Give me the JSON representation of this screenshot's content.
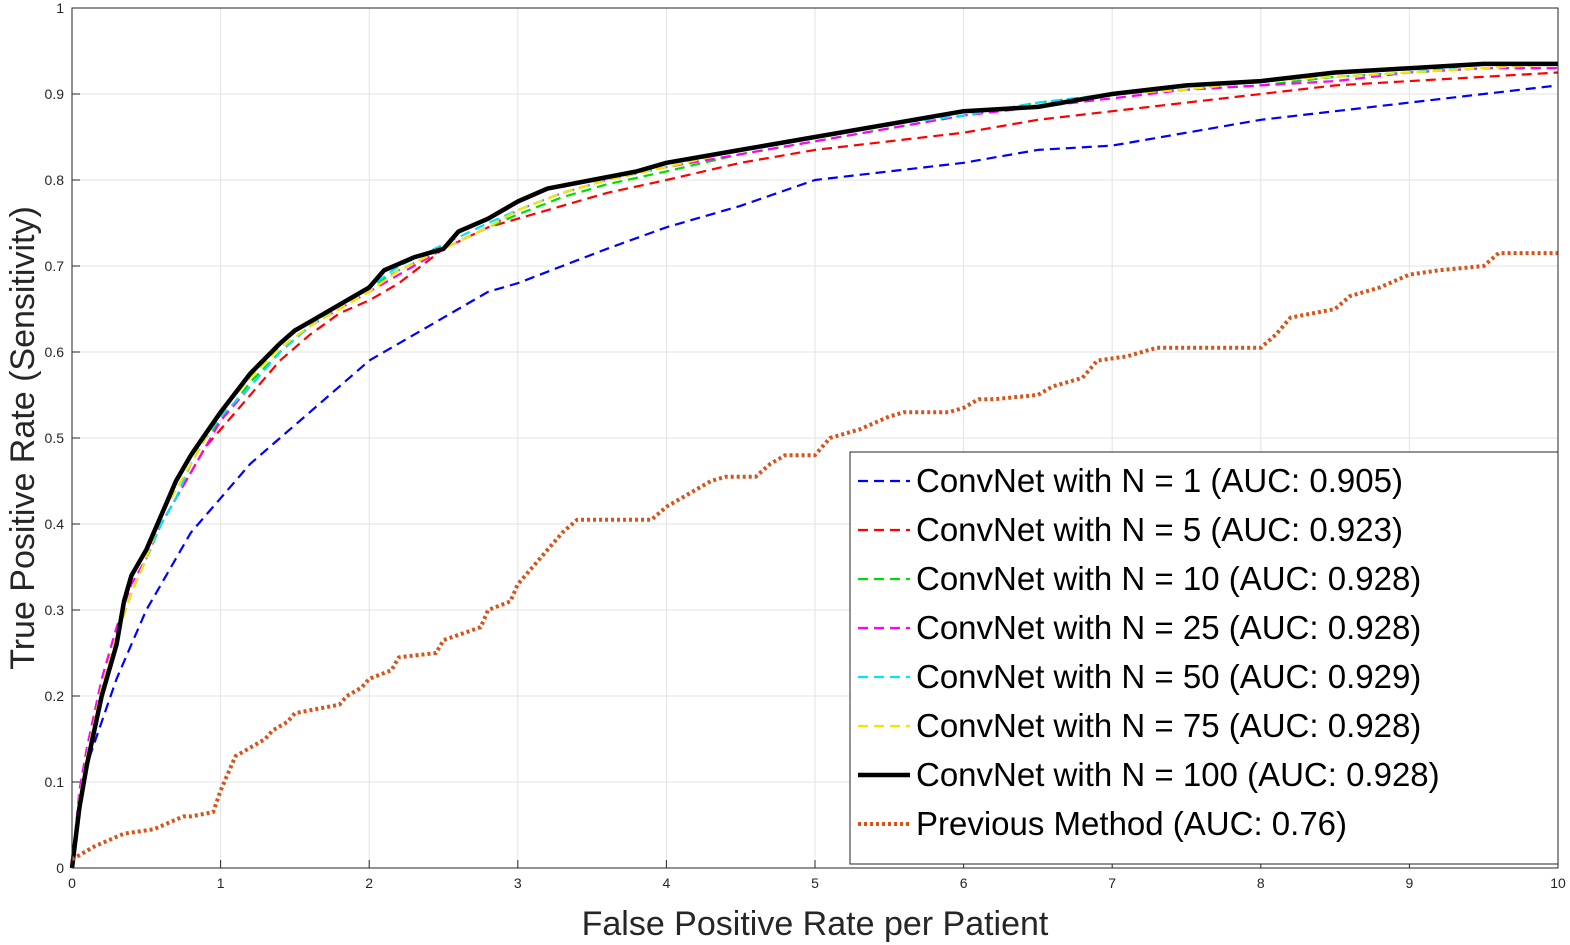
{
  "chart_data": {
    "type": "line",
    "xlabel": "False Positive Rate per Patient",
    "ylabel": "True Positive Rate (Sensitivity)",
    "xlim": [
      0,
      10
    ],
    "ylim": [
      0,
      1
    ],
    "xticks": [
      "0",
      "1",
      "2",
      "3",
      "4",
      "5",
      "6",
      "7",
      "8",
      "9",
      "10"
    ],
    "yticks": [
      "0",
      "0.1",
      "0.2",
      "0.3",
      "0.4",
      "0.5",
      "0.6",
      "0.7",
      "0.8",
      "0.9",
      "1"
    ],
    "grid": true,
    "legend_position": "bottom-right",
    "series": [
      {
        "name": "ConvNet with N = 1 (AUC: 0.905)",
        "color": "#0000ff",
        "style": "dashed",
        "x": [
          0,
          0.05,
          0.1,
          0.2,
          0.3,
          0.4,
          0.5,
          0.6,
          0.7,
          0.8,
          0.9,
          1.0,
          1.2,
          1.4,
          1.6,
          1.8,
          2.0,
          2.2,
          2.5,
          2.8,
          3.0,
          3.3,
          3.6,
          4.0,
          4.5,
          5.0,
          5.5,
          6.0,
          6.5,
          7.0,
          7.5,
          8.0,
          8.5,
          9.0,
          9.5,
          10.0
        ],
        "y": [
          0,
          0.08,
          0.12,
          0.17,
          0.22,
          0.26,
          0.3,
          0.33,
          0.36,
          0.39,
          0.41,
          0.43,
          0.47,
          0.5,
          0.53,
          0.56,
          0.59,
          0.61,
          0.64,
          0.67,
          0.68,
          0.7,
          0.72,
          0.745,
          0.77,
          0.8,
          0.81,
          0.82,
          0.835,
          0.84,
          0.855,
          0.87,
          0.88,
          0.89,
          0.9,
          0.91
        ]
      },
      {
        "name": "ConvNet with N = 5 (AUC: 0.923)",
        "color": "#ff0000",
        "style": "dashed",
        "x": [
          0,
          0.05,
          0.1,
          0.2,
          0.3,
          0.4,
          0.5,
          0.6,
          0.7,
          0.8,
          0.9,
          1.0,
          1.2,
          1.4,
          1.6,
          1.8,
          2.0,
          2.2,
          2.5,
          2.8,
          3.0,
          3.3,
          3.6,
          4.0,
          4.5,
          5.0,
          5.5,
          6.0,
          6.5,
          7.0,
          7.5,
          8.0,
          8.5,
          9.0,
          9.5,
          10.0
        ],
        "y": [
          0,
          0.07,
          0.12,
          0.2,
          0.27,
          0.32,
          0.36,
          0.4,
          0.43,
          0.46,
          0.49,
          0.51,
          0.55,
          0.59,
          0.62,
          0.645,
          0.66,
          0.68,
          0.72,
          0.745,
          0.755,
          0.77,
          0.785,
          0.8,
          0.82,
          0.835,
          0.845,
          0.855,
          0.87,
          0.88,
          0.89,
          0.9,
          0.91,
          0.915,
          0.92,
          0.925
        ]
      },
      {
        "name": "ConvNet with N = 10 (AUC: 0.928)",
        "color": "#00dd00",
        "style": "dashed",
        "x": [
          0,
          0.05,
          0.1,
          0.2,
          0.3,
          0.4,
          0.5,
          0.6,
          0.7,
          0.8,
          0.9,
          1.0,
          1.2,
          1.4,
          1.6,
          1.8,
          2.0,
          2.2,
          2.5,
          2.8,
          3.0,
          3.3,
          3.6,
          4.0,
          4.5,
          5.0,
          5.5,
          6.0,
          6.5,
          7.0,
          7.5,
          8.0,
          8.5,
          9.0,
          9.5,
          10.0
        ],
        "y": [
          0,
          0.08,
          0.13,
          0.21,
          0.27,
          0.32,
          0.36,
          0.4,
          0.43,
          0.47,
          0.5,
          0.52,
          0.565,
          0.6,
          0.63,
          0.655,
          0.675,
          0.695,
          0.72,
          0.745,
          0.76,
          0.78,
          0.795,
          0.81,
          0.83,
          0.845,
          0.86,
          0.875,
          0.89,
          0.9,
          0.905,
          0.91,
          0.92,
          0.925,
          0.93,
          0.93
        ]
      },
      {
        "name": "ConvNet with N = 25 (AUC: 0.928)",
        "color": "#ff00ff",
        "style": "dashed",
        "x": [
          0,
          0.05,
          0.1,
          0.2,
          0.3,
          0.4,
          0.5,
          0.6,
          0.7,
          0.8,
          0.9,
          1.0,
          1.2,
          1.4,
          1.6,
          1.8,
          2.0,
          2.2,
          2.5,
          2.8,
          3.0,
          3.3,
          3.6,
          4.0,
          4.5,
          5.0,
          5.5,
          6.0,
          6.5,
          7.0,
          7.5,
          8.0,
          8.5,
          9.0,
          9.5,
          10.0
        ],
        "y": [
          0,
          0.09,
          0.14,
          0.22,
          0.28,
          0.33,
          0.36,
          0.4,
          0.43,
          0.46,
          0.49,
          0.52,
          0.56,
          0.6,
          0.63,
          0.65,
          0.67,
          0.69,
          0.72,
          0.745,
          0.765,
          0.785,
          0.8,
          0.815,
          0.83,
          0.845,
          0.86,
          0.875,
          0.885,
          0.895,
          0.905,
          0.91,
          0.915,
          0.925,
          0.93,
          0.93
        ]
      },
      {
        "name": "ConvNet with N = 50 (AUC: 0.929)",
        "color": "#00e5ff",
        "style": "dashed",
        "x": [
          0,
          0.05,
          0.1,
          0.2,
          0.3,
          0.4,
          0.5,
          0.6,
          0.7,
          0.8,
          0.9,
          1.0,
          1.2,
          1.4,
          1.6,
          1.8,
          2.0,
          2.2,
          2.5,
          2.8,
          3.0,
          3.3,
          3.6,
          4.0,
          4.5,
          5.0,
          5.5,
          6.0,
          6.5,
          7.0,
          7.5,
          8.0,
          8.5,
          9.0,
          9.5,
          10.0
        ],
        "y": [
          0,
          0.08,
          0.13,
          0.21,
          0.27,
          0.32,
          0.36,
          0.4,
          0.43,
          0.47,
          0.5,
          0.525,
          0.56,
          0.6,
          0.63,
          0.655,
          0.675,
          0.7,
          0.725,
          0.75,
          0.765,
          0.785,
          0.8,
          0.815,
          0.835,
          0.85,
          0.865,
          0.875,
          0.89,
          0.9,
          0.905,
          0.915,
          0.92,
          0.925,
          0.935,
          0.935
        ]
      },
      {
        "name": "ConvNet with N = 75 (AUC: 0.928)",
        "color": "#f5e600",
        "style": "dashed",
        "x": [
          0,
          0.05,
          0.1,
          0.2,
          0.3,
          0.4,
          0.5,
          0.6,
          0.7,
          0.8,
          0.9,
          1.0,
          1.2,
          1.4,
          1.6,
          1.8,
          2.0,
          2.2,
          2.5,
          2.8,
          3.0,
          3.3,
          3.6,
          4.0,
          4.5,
          5.0,
          5.5,
          6.0,
          6.5,
          7.0,
          7.5,
          8.0,
          8.5,
          9.0,
          9.5,
          10.0
        ],
        "y": [
          0,
          0.08,
          0.13,
          0.21,
          0.27,
          0.32,
          0.36,
          0.41,
          0.44,
          0.47,
          0.5,
          0.53,
          0.57,
          0.605,
          0.63,
          0.65,
          0.67,
          0.695,
          0.72,
          0.745,
          0.765,
          0.785,
          0.8,
          0.815,
          0.835,
          0.85,
          0.865,
          0.88,
          0.885,
          0.9,
          0.905,
          0.915,
          0.92,
          0.925,
          0.93,
          0.935
        ]
      },
      {
        "name": "ConvNet with N = 100 (AUC: 0.928)",
        "color": "#000000",
        "style": "solid",
        "x": [
          0,
          0.05,
          0.1,
          0.2,
          0.3,
          0.35,
          0.4,
          0.5,
          0.6,
          0.7,
          0.8,
          0.9,
          1.0,
          1.2,
          1.4,
          1.5,
          1.6,
          1.8,
          2.0,
          2.1,
          2.3,
          2.5,
          2.6,
          2.8,
          3.0,
          3.2,
          3.5,
          3.8,
          4.0,
          4.5,
          5.0,
          5.5,
          6.0,
          6.5,
          7.0,
          7.5,
          8.0,
          8.5,
          9.0,
          9.5,
          10.0
        ],
        "y": [
          0,
          0.07,
          0.12,
          0.2,
          0.26,
          0.31,
          0.34,
          0.37,
          0.41,
          0.45,
          0.48,
          0.505,
          0.53,
          0.575,
          0.61,
          0.625,
          0.635,
          0.655,
          0.675,
          0.695,
          0.71,
          0.72,
          0.74,
          0.755,
          0.775,
          0.79,
          0.8,
          0.81,
          0.82,
          0.835,
          0.85,
          0.865,
          0.88,
          0.885,
          0.9,
          0.91,
          0.915,
          0.925,
          0.93,
          0.935,
          0.935
        ]
      },
      {
        "name": "Previous Method (AUC: 0.76)",
        "color": "#d95319",
        "style": "dotted",
        "x": [
          0,
          0.05,
          0.15,
          0.35,
          0.55,
          0.75,
          0.8,
          0.95,
          1.0,
          1.05,
          1.1,
          1.3,
          1.35,
          1.45,
          1.5,
          1.8,
          1.85,
          1.95,
          2.0,
          2.15,
          2.2,
          2.45,
          2.5,
          2.75,
          2.8,
          2.95,
          3.0,
          3.1,
          3.2,
          3.3,
          3.4,
          3.9,
          4.0,
          4.1,
          4.2,
          4.3,
          4.4,
          4.6,
          4.7,
          4.8,
          5.0,
          5.1,
          5.3,
          5.5,
          5.6,
          5.9,
          6.0,
          6.1,
          6.2,
          6.5,
          6.6,
          6.8,
          6.9,
          7.1,
          7.3,
          8.0,
          8.1,
          8.2,
          8.5,
          8.6,
          8.8,
          9.0,
          9.2,
          9.5,
          9.6,
          10.0
        ],
        "y": [
          0.01,
          0.015,
          0.025,
          0.04,
          0.045,
          0.06,
          0.06,
          0.065,
          0.09,
          0.11,
          0.13,
          0.15,
          0.16,
          0.17,
          0.18,
          0.19,
          0.2,
          0.21,
          0.22,
          0.23,
          0.245,
          0.25,
          0.265,
          0.28,
          0.3,
          0.31,
          0.33,
          0.35,
          0.37,
          0.39,
          0.405,
          0.405,
          0.42,
          0.43,
          0.44,
          0.45,
          0.455,
          0.455,
          0.47,
          0.48,
          0.48,
          0.5,
          0.51,
          0.525,
          0.53,
          0.53,
          0.535,
          0.545,
          0.545,
          0.55,
          0.56,
          0.57,
          0.59,
          0.595,
          0.605,
          0.605,
          0.62,
          0.64,
          0.65,
          0.665,
          0.675,
          0.69,
          0.695,
          0.7,
          0.715,
          0.715
        ]
      }
    ]
  }
}
